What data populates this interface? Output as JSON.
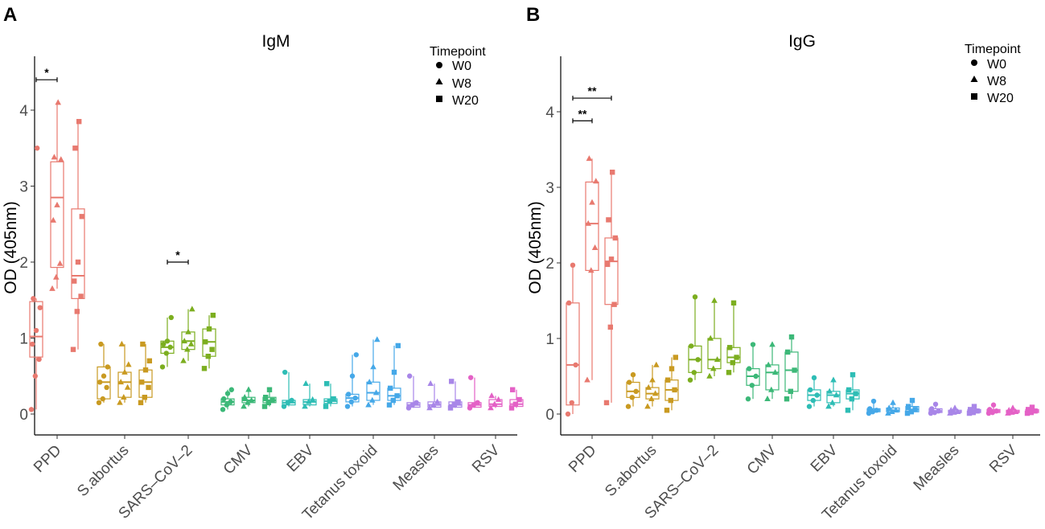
{
  "panels": [
    {
      "letter": "A",
      "title": "IgM",
      "ylabel": "OD (405nm)"
    },
    {
      "letter": "B",
      "title": "IgG",
      "ylabel": "OD (405nm)"
    }
  ],
  "legend": {
    "title": "Timepoint",
    "items": [
      {
        "label": "W0",
        "shape": "circle"
      },
      {
        "label": "W8",
        "shape": "triangle"
      },
      {
        "label": "W20",
        "shape": "square"
      }
    ]
  },
  "chart_data": [
    {
      "type": "boxplot",
      "title": "IgM",
      "ylabel": "OD (405nm)",
      "ylim": [
        -0.2,
        4.7
      ],
      "yticks": [
        0,
        1,
        2,
        3,
        4
      ],
      "categories": [
        "PPD",
        "S.abortus",
        "SARS–CoV–2",
        "CMV",
        "EBV",
        "Tetanus toxoid",
        "Measles",
        "RSV"
      ],
      "colors": [
        "#E8796F",
        "#C99A21",
        "#7CAE1F",
        "#3CB878",
        "#2EBDB5",
        "#45A8E8",
        "#A886E8",
        "#E461C6"
      ],
      "timepoints": [
        "W0",
        "W8",
        "W20"
      ],
      "boxes": [
        [
          {
            "q1": 0.75,
            "med": 1.02,
            "q3": 1.48,
            "lo": 0.06,
            "hi": 1.52,
            "pts": [
              0.06,
              0.5,
              0.72,
              0.92,
              1.1,
              1.4,
              1.52,
              3.5
            ]
          },
          {
            "q1": 1.93,
            "med": 2.85,
            "q3": 3.32,
            "lo": 1.65,
            "hi": 4.1,
            "pts": [
              1.65,
              1.8,
              1.98,
              2.55,
              2.75,
              3.35,
              3.38,
              4.1
            ]
          },
          {
            "q1": 1.52,
            "med": 1.82,
            "q3": 2.7,
            "lo": 0.85,
            "hi": 3.85,
            "pts": [
              0.85,
              1.35,
              1.55,
              1.75,
              2.0,
              2.6,
              3.5,
              3.85
            ]
          }
        ],
        [
          {
            "q1": 0.2,
            "med": 0.42,
            "q3": 0.62,
            "lo": 0.15,
            "hi": 0.92,
            "pts": [
              0.15,
              0.2,
              0.35,
              0.42,
              0.5,
              0.62,
              0.92
            ]
          },
          {
            "q1": 0.22,
            "med": 0.42,
            "q3": 0.55,
            "lo": 0.15,
            "hi": 0.92,
            "pts": [
              0.15,
              0.22,
              0.35,
              0.42,
              0.55,
              0.65,
              0.92
            ]
          },
          {
            "q1": 0.22,
            "med": 0.42,
            "q3": 0.58,
            "lo": 0.15,
            "hi": 0.92,
            "pts": [
              0.15,
              0.22,
              0.35,
              0.42,
              0.58,
              0.7,
              0.92
            ]
          }
        ],
        [
          {
            "q1": 0.8,
            "med": 0.88,
            "q3": 0.96,
            "lo": 0.62,
            "hi": 1.27,
            "pts": [
              0.62,
              0.8,
              0.88,
              0.92,
              0.96,
              1.27
            ]
          },
          {
            "q1": 0.85,
            "med": 0.96,
            "q3": 1.08,
            "lo": 0.7,
            "hi": 1.38,
            "pts": [
              0.7,
              0.85,
              0.92,
              0.96,
              1.08,
              1.38
            ]
          },
          {
            "q1": 0.76,
            "med": 0.95,
            "q3": 1.12,
            "lo": 0.6,
            "hi": 1.3,
            "pts": [
              0.6,
              0.76,
              0.85,
              0.95,
              1.12,
              1.3
            ]
          }
        ],
        [
          {
            "q1": 0.12,
            "med": 0.16,
            "q3": 0.2,
            "lo": 0.06,
            "hi": 0.32,
            "pts": [
              0.06,
              0.12,
              0.16,
              0.2,
              0.27,
              0.32
            ]
          },
          {
            "q1": 0.15,
            "med": 0.18,
            "q3": 0.22,
            "lo": 0.1,
            "hi": 0.32,
            "pts": [
              0.1,
              0.15,
              0.18,
              0.22,
              0.32
            ]
          },
          {
            "q1": 0.15,
            "med": 0.18,
            "q3": 0.22,
            "lo": 0.1,
            "hi": 0.32,
            "pts": [
              0.1,
              0.15,
              0.18,
              0.22,
              0.32
            ]
          }
        ],
        [
          {
            "q1": 0.12,
            "med": 0.15,
            "q3": 0.18,
            "lo": 0.1,
            "hi": 0.55,
            "pts": [
              0.1,
              0.15,
              0.18,
              0.55
            ]
          },
          {
            "q1": 0.12,
            "med": 0.16,
            "q3": 0.19,
            "lo": 0.1,
            "hi": 0.4,
            "pts": [
              0.1,
              0.16,
              0.19,
              0.4
            ]
          },
          {
            "q1": 0.14,
            "med": 0.17,
            "q3": 0.2,
            "lo": 0.1,
            "hi": 0.4,
            "pts": [
              0.1,
              0.17,
              0.2,
              0.4
            ]
          }
        ],
        [
          {
            "q1": 0.16,
            "med": 0.21,
            "q3": 0.26,
            "lo": 0.1,
            "hi": 0.78,
            "pts": [
              0.1,
              0.16,
              0.21,
              0.26,
              0.5,
              0.78
            ]
          },
          {
            "q1": 0.18,
            "med": 0.28,
            "q3": 0.42,
            "lo": 0.12,
            "hi": 0.98,
            "pts": [
              0.12,
              0.18,
              0.28,
              0.42,
              0.62,
              0.98
            ]
          },
          {
            "q1": 0.18,
            "med": 0.24,
            "q3": 0.34,
            "lo": 0.12,
            "hi": 0.9,
            "pts": [
              0.12,
              0.18,
              0.24,
              0.34,
              0.55,
              0.9
            ]
          }
        ],
        [
          {
            "q1": 0.09,
            "med": 0.12,
            "q3": 0.15,
            "lo": 0.08,
            "hi": 0.5,
            "pts": [
              0.08,
              0.12,
              0.15,
              0.5
            ]
          },
          {
            "q1": 0.09,
            "med": 0.12,
            "q3": 0.16,
            "lo": 0.08,
            "hi": 0.4,
            "pts": [
              0.08,
              0.12,
              0.16,
              0.4
            ]
          },
          {
            "q1": 0.09,
            "med": 0.12,
            "q3": 0.16,
            "lo": 0.08,
            "hi": 0.43,
            "pts": [
              0.08,
              0.12,
              0.16,
              0.43
            ]
          }
        ],
        [
          {
            "q1": 0.09,
            "med": 0.12,
            "q3": 0.15,
            "lo": 0.08,
            "hi": 0.48,
            "pts": [
              0.08,
              0.12,
              0.15,
              0.48
            ]
          },
          {
            "q1": 0.1,
            "med": 0.13,
            "q3": 0.19,
            "lo": 0.08,
            "hi": 0.24,
            "pts": [
              0.08,
              0.13,
              0.19,
              0.24
            ]
          },
          {
            "q1": 0.1,
            "med": 0.13,
            "q3": 0.19,
            "lo": 0.08,
            "hi": 0.32,
            "pts": [
              0.08,
              0.13,
              0.19,
              0.32
            ]
          }
        ]
      ],
      "significance": [
        {
          "category": 0,
          "from": 0,
          "to": 1,
          "y": 4.4,
          "label": "*"
        },
        {
          "category": 2,
          "from": 0,
          "to": 1,
          "y": 2.0,
          "label": "*"
        }
      ]
    },
    {
      "type": "boxplot",
      "title": "IgG",
      "ylabel": "OD (405nm)",
      "ylim": [
        -0.2,
        4.7
      ],
      "yticks": [
        0,
        1,
        2,
        3,
        4
      ],
      "categories": [
        "PPD",
        "S.abortus",
        "SARS–CoV–2",
        "CMV",
        "EBV",
        "Tetanus toxoid",
        "Measles",
        "RSV"
      ],
      "colors": [
        "#E8796F",
        "#C99A21",
        "#7CAE1F",
        "#3CB878",
        "#2EBDB5",
        "#45A8E8",
        "#A886E8",
        "#E461C6"
      ],
      "timepoints": [
        "W0",
        "W8",
        "W20"
      ],
      "boxes": [
        [
          {
            "q1": 0.12,
            "med": 0.65,
            "q3": 1.47,
            "lo": 0.0,
            "hi": 1.97,
            "pts": [
              0.0,
              0.15,
              0.65,
              1.47,
              1.97
            ]
          },
          {
            "q1": 1.9,
            "med": 2.52,
            "q3": 3.07,
            "lo": 0.45,
            "hi": 3.38,
            "pts": [
              0.45,
              1.9,
              2.2,
              2.52,
              2.8,
              3.08,
              3.38
            ]
          },
          {
            "q1": 1.45,
            "med": 2.02,
            "q3": 2.33,
            "lo": 0.15,
            "hi": 3.2,
            "pts": [
              0.15,
              1.15,
              1.45,
              1.98,
              2.05,
              2.33,
              2.57,
              3.2
            ]
          }
        ],
        [
          {
            "q1": 0.22,
            "med": 0.3,
            "q3": 0.42,
            "lo": 0.1,
            "hi": 0.52,
            "pts": [
              0.1,
              0.22,
              0.3,
              0.42,
              0.52
            ]
          },
          {
            "q1": 0.2,
            "med": 0.27,
            "q3": 0.35,
            "lo": 0.1,
            "hi": 0.65,
            "pts": [
              0.1,
              0.2,
              0.27,
              0.35,
              0.45,
              0.65
            ]
          },
          {
            "q1": 0.18,
            "med": 0.32,
            "q3": 0.45,
            "lo": 0.05,
            "hi": 0.75,
            "pts": [
              0.05,
              0.18,
              0.32,
              0.45,
              0.6,
              0.75
            ]
          }
        ],
        [
          {
            "q1": 0.55,
            "med": 0.72,
            "q3": 0.9,
            "lo": 0.45,
            "hi": 1.55,
            "pts": [
              0.45,
              0.55,
              0.72,
              0.9,
              1.55
            ]
          },
          {
            "q1": 0.6,
            "med": 0.72,
            "q3": 1.0,
            "lo": 0.5,
            "hi": 1.5,
            "pts": [
              0.5,
              0.6,
              0.72,
              1.0,
              1.5
            ]
          },
          {
            "q1": 0.68,
            "med": 0.75,
            "q3": 0.88,
            "lo": 0.55,
            "hi": 1.47,
            "pts": [
              0.55,
              0.68,
              0.75,
              0.88,
              1.47
            ]
          }
        ],
        [
          {
            "q1": 0.38,
            "med": 0.5,
            "q3": 0.6,
            "lo": 0.2,
            "hi": 0.92,
            "pts": [
              0.2,
              0.38,
              0.5,
              0.6,
              0.92
            ]
          },
          {
            "q1": 0.32,
            "med": 0.55,
            "q3": 0.65,
            "lo": 0.2,
            "hi": 0.92,
            "pts": [
              0.2,
              0.32,
              0.55,
              0.65,
              0.92
            ]
          },
          {
            "q1": 0.3,
            "med": 0.58,
            "q3": 0.82,
            "lo": 0.2,
            "hi": 1.02,
            "pts": [
              0.2,
              0.3,
              0.58,
              0.82,
              1.02
            ]
          }
        ],
        [
          {
            "q1": 0.18,
            "med": 0.25,
            "q3": 0.32,
            "lo": 0.1,
            "hi": 0.48,
            "pts": [
              0.1,
              0.18,
              0.25,
              0.32,
              0.48
            ]
          },
          {
            "q1": 0.15,
            "med": 0.25,
            "q3": 0.3,
            "lo": 0.1,
            "hi": 0.45,
            "pts": [
              0.1,
              0.15,
              0.25,
              0.3,
              0.45
            ]
          },
          {
            "q1": 0.2,
            "med": 0.27,
            "q3": 0.32,
            "lo": 0.05,
            "hi": 0.52,
            "pts": [
              0.05,
              0.2,
              0.27,
              0.32,
              0.52
            ]
          }
        ],
        [
          {
            "q1": 0.03,
            "med": 0.05,
            "q3": 0.07,
            "lo": 0.01,
            "hi": 0.17,
            "pts": [
              0.01,
              0.03,
              0.05,
              0.07,
              0.17
            ]
          },
          {
            "q1": 0.03,
            "med": 0.05,
            "q3": 0.08,
            "lo": 0.01,
            "hi": 0.15,
            "pts": [
              0.01,
              0.03,
              0.05,
              0.08,
              0.15
            ]
          },
          {
            "q1": 0.03,
            "med": 0.06,
            "q3": 0.1,
            "lo": 0.01,
            "hi": 0.18,
            "pts": [
              0.01,
              0.03,
              0.06,
              0.1,
              0.18
            ]
          }
        ],
        [
          {
            "q1": 0.02,
            "med": 0.04,
            "q3": 0.07,
            "lo": 0.01,
            "hi": 0.13,
            "pts": [
              0.01,
              0.02,
              0.04,
              0.07,
              0.13
            ]
          },
          {
            "q1": 0.02,
            "med": 0.03,
            "q3": 0.05,
            "lo": 0.01,
            "hi": 0.08,
            "pts": [
              0.01,
              0.02,
              0.03,
              0.05,
              0.08
            ]
          },
          {
            "q1": 0.02,
            "med": 0.04,
            "q3": 0.06,
            "lo": 0.01,
            "hi": 0.1,
            "pts": [
              0.01,
              0.02,
              0.04,
              0.06,
              0.1
            ]
          }
        ],
        [
          {
            "q1": 0.02,
            "med": 0.04,
            "q3": 0.06,
            "lo": 0.01,
            "hi": 0.12,
            "pts": [
              0.01,
              0.02,
              0.04,
              0.06,
              0.12
            ]
          },
          {
            "q1": 0.02,
            "med": 0.03,
            "q3": 0.05,
            "lo": 0.01,
            "hi": 0.08,
            "pts": [
              0.01,
              0.02,
              0.03,
              0.05,
              0.08
            ]
          },
          {
            "q1": 0.02,
            "med": 0.04,
            "q3": 0.06,
            "lo": 0.01,
            "hi": 0.09,
            "pts": [
              0.01,
              0.02,
              0.04,
              0.06,
              0.09
            ]
          }
        ]
      ],
      "significance": [
        {
          "category": 0,
          "from": 0,
          "to": 2,
          "y": 4.18,
          "label": "**"
        },
        {
          "category": 0,
          "from": 0,
          "to": 1,
          "y": 3.88,
          "label": "**"
        }
      ]
    }
  ]
}
